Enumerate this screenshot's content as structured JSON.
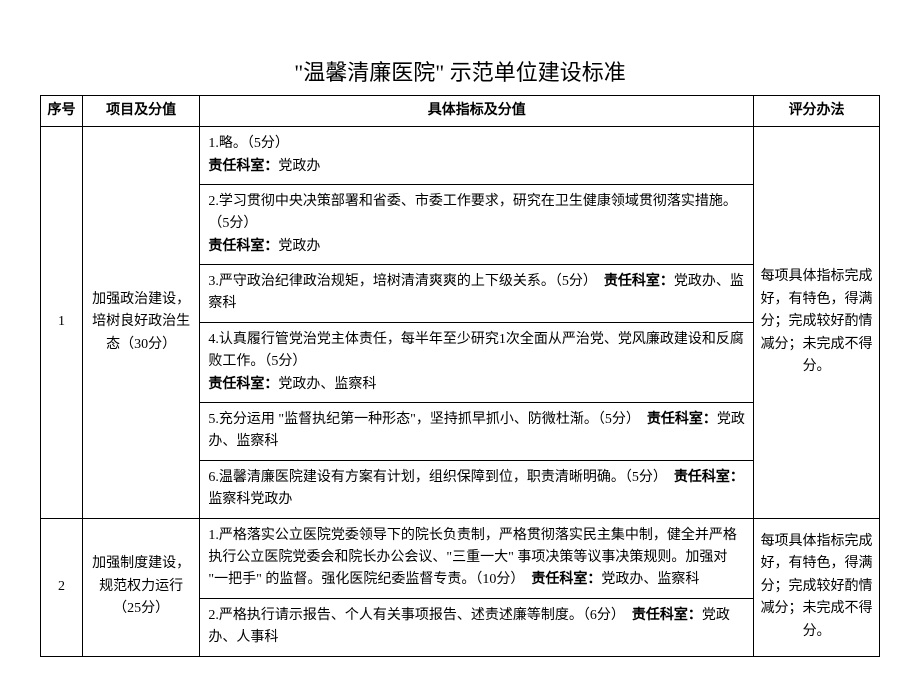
{
  "title": "\"温馨清廉医院\" 示范单位建设标准",
  "headers": {
    "seq": "序号",
    "project": "项目及分值",
    "indicator": "具体指标及分值",
    "evaluation": "评分办法"
  },
  "rows": [
    {
      "seq": "1",
      "project": "加强政治建设，培树良好政治生态（30分）",
      "evaluation": "每项具体指标完成好，有特色，得满分；完成较好酌情减分；未完成不得分。",
      "indicators": [
        {
          "text_a": "1.略。（5分）",
          "br": true,
          "dept_label": "责任科室：",
          "dept": "党政办"
        },
        {
          "text_a": "2.学习贯彻中央决策部署和省委、市委工作要求，研究在卫生健康领域贯彻落实措施。（5分）",
          "br": true,
          "dept_label": "责任科室：",
          "dept": "党政办"
        },
        {
          "text_a": "3.严守政治纪律政治规矩，培树清清爽爽的上下级关系。（5分）　",
          "dept_label": "责任科室：",
          "dept": "党政办、监察科"
        },
        {
          "text_a": "4.认真履行管党治党主体责任，每半年至少研究1次全面从严治党、党风廉政建设和反腐  败工作。（5分）",
          "br": true,
          "dept_label": "责任科室：",
          "dept": "党政办、监察科"
        },
        {
          "text_a": "5.充分运用 \"监督执纪第一种形态\"，坚持抓早抓小、防微杜渐。（5分）　",
          "dept_label": "责任科室：",
          "dept": "党政办、监察科"
        },
        {
          "text_a": "6.温馨清廉医院建设有方案有计划，组织保障到位，职责清晰明确。（5分）　",
          "dept_label": "责任科室：",
          "dept": "监察科党政办"
        }
      ]
    },
    {
      "seq": "2",
      "project": "加强制度建设，规范权力运行（25分）",
      "evaluation": "每项具体指标完成好，有特色，得满分；完成较好酌情减分；未完成不得分。",
      "indicators": [
        {
          "text_a": "1.严格落实公立医院党委领导下的院长负责制，严格贯彻落实民主集中制，健全并严格执行公立医院党委会和院长办公会议、\"三重一大\" 事项决策等议事决策规则。加强对 \"一把手\" 的监督。强化医院纪委监督专责。（10分）　",
          "dept_label": "责任科室：",
          "dept": "党政办、监察科"
        },
        {
          "text_a": "2.严格执行请示报告、个人有关事项报告、述责述廉等制度。（6分）　",
          "dept_label": "责任科室：",
          "dept": "党政办、人事科"
        }
      ]
    }
  ]
}
